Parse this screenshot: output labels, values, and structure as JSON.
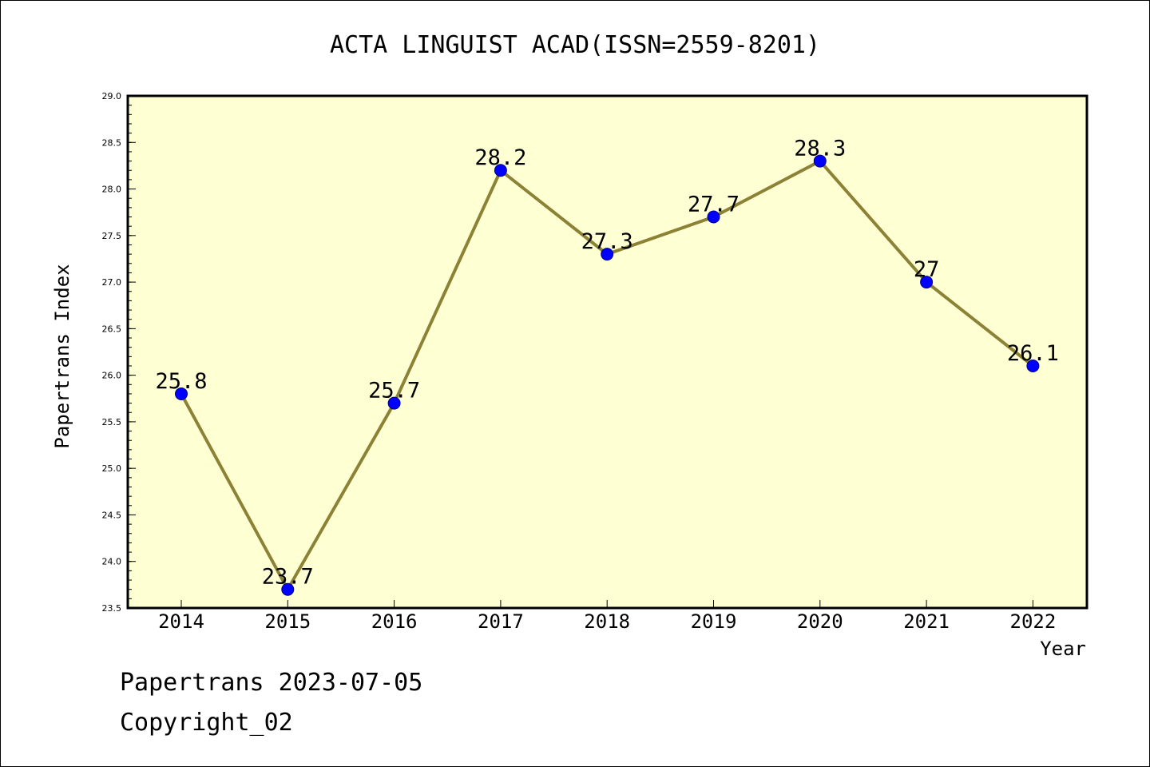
{
  "chart_data": {
    "type": "line",
    "title": "ACTA LINGUIST ACAD(ISSN=2559-8201)",
    "xlabel": "Year",
    "ylabel": "Papertrans Index",
    "categories": [
      "2014",
      "2015",
      "2016",
      "2017",
      "2018",
      "2019",
      "2020",
      "2021",
      "2022"
    ],
    "values": [
      25.8,
      23.7,
      25.7,
      28.2,
      27.3,
      27.7,
      28.3,
      27,
      26.1
    ],
    "data_labels": [
      "25.8",
      "23.7",
      "25.7",
      "28.2",
      "27.3",
      "27.7",
      "28.3",
      "27",
      "26.1"
    ],
    "ylim": [
      23.5,
      29.0
    ],
    "yticks": [
      "23.5",
      "24.0",
      "24.5",
      "25.0",
      "25.5",
      "26.0",
      "26.5",
      "27.0",
      "27.5",
      "28.0",
      "28.5",
      "29.0"
    ],
    "grid": false,
    "legend": "none",
    "colors": {
      "plot_background": "#ffffd4",
      "line": "#8b8236",
      "marker": "#0000ff"
    }
  },
  "footer": {
    "line1": "Papertrans 2023-07-05",
    "line2": "Copyright_02"
  }
}
